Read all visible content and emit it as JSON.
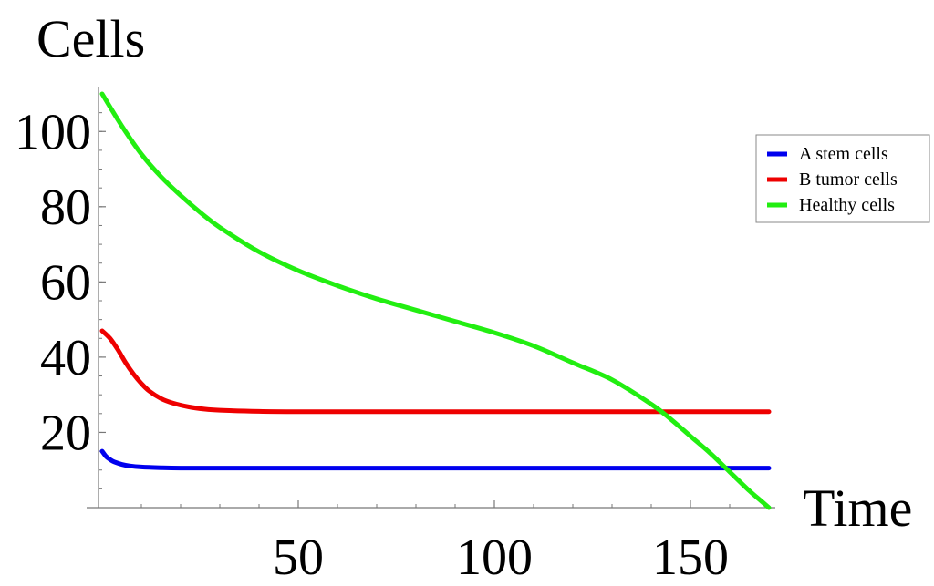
{
  "chart_data": {
    "type": "line",
    "xlabel": "Time",
    "ylabel": "Cells",
    "xlim": [
      0,
      170
    ],
    "ylim": [
      0,
      110
    ],
    "x_ticks": [
      50,
      100,
      150
    ],
    "y_ticks": [
      20,
      40,
      60,
      80,
      100
    ],
    "legend_position": "top-right",
    "series": [
      {
        "name": "A stem cells",
        "color": "#0000ee",
        "x": [
          0,
          1,
          2,
          3,
          5,
          7,
          10,
          15,
          20,
          30,
          50,
          100,
          150,
          170
        ],
        "y": [
          15,
          13.6,
          12.8,
          12.2,
          11.5,
          11.1,
          10.8,
          10.6,
          10.5,
          10.5,
          10.5,
          10.5,
          10.5,
          10.5
        ]
      },
      {
        "name": "B tumor cells",
        "color": "#ee0000",
        "x": [
          0,
          2,
          4,
          6,
          8,
          10,
          12,
          15,
          18,
          22,
          26,
          30,
          40,
          50,
          60,
          80,
          100,
          120,
          150,
          170
        ],
        "y": [
          47,
          45,
          42,
          38.5,
          35.5,
          33,
          31,
          29,
          27.8,
          26.8,
          26.2,
          25.9,
          25.6,
          25.5,
          25.5,
          25.5,
          25.5,
          25.5,
          25.5,
          25.5
        ]
      },
      {
        "name": "Healthy cells",
        "color": "#22ee11",
        "x": [
          0,
          5,
          10,
          15,
          20,
          25,
          30,
          40,
          50,
          60,
          70,
          80,
          90,
          100,
          110,
          120,
          130,
          140,
          145,
          150,
          155,
          160,
          165,
          168,
          170
        ],
        "y": [
          110,
          101.5,
          94,
          88,
          83,
          78.5,
          74.5,
          68,
          63,
          59,
          55.5,
          52.5,
          49.5,
          46.5,
          43,
          38.5,
          34,
          27.5,
          23.5,
          19,
          14.5,
          9.5,
          4.5,
          1.8,
          0
        ]
      }
    ]
  }
}
